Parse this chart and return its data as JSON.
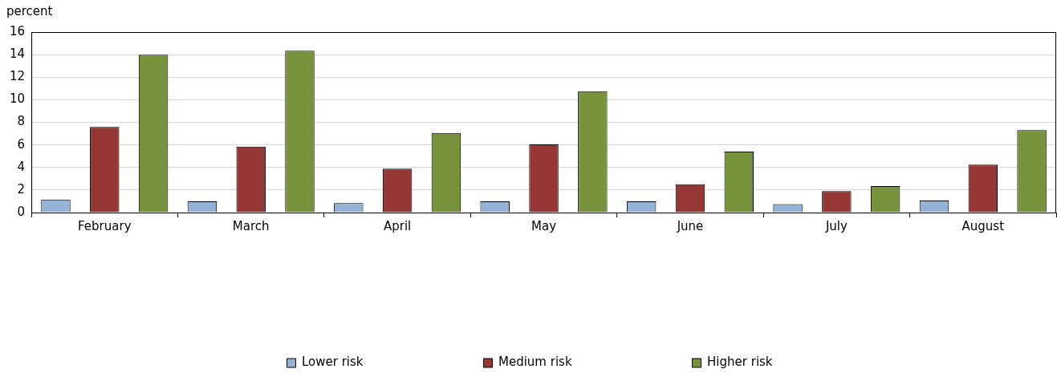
{
  "chart_data": {
    "type": "bar",
    "ylabel": "percent",
    "categories": [
      "February",
      "March",
      "April",
      "May",
      "June",
      "July",
      "August"
    ],
    "series": [
      {
        "name": "Lower risk",
        "color": "#95b3d7",
        "values": [
          1.15,
          1.0,
          0.83,
          1.0,
          1.0,
          0.74,
          1.06
        ]
      },
      {
        "name": "Medium risk",
        "color": "#953735",
        "values": [
          7.6,
          5.85,
          3.9,
          6.05,
          2.5,
          1.9,
          4.25
        ]
      },
      {
        "name": "Higher risk",
        "color": "#77933c",
        "values": [
          14.0,
          14.35,
          7.05,
          10.75,
          5.4,
          2.35,
          7.3
        ]
      }
    ],
    "ylim": [
      0,
      16
    ],
    "yticks": [
      0,
      2,
      4,
      6,
      8,
      10,
      12,
      14,
      16
    ],
    "grid": "y",
    "legend": "bottom"
  }
}
